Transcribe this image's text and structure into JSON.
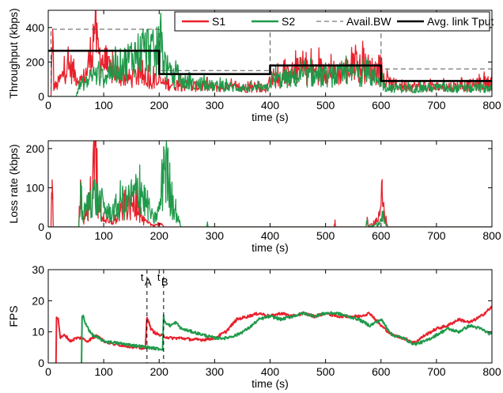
{
  "chart_data": [
    {
      "type": "line",
      "xlabel": "time (s)",
      "ylabel": "Throughput (kbps)",
      "xlim": [
        0,
        800
      ],
      "ylim": [
        0,
        500
      ],
      "xticks": [
        0,
        100,
        200,
        300,
        400,
        500,
        600,
        700,
        800
      ],
      "yticks": [
        0,
        200,
        400
      ],
      "grid": false,
      "legend": {
        "placement": "top-right",
        "entries": [
          "S1",
          "S2",
          "Avail.BW",
          "Avg. link Tput"
        ]
      },
      "series": [
        {
          "name": "S1",
          "color": "#e8212c",
          "style": "noisy",
          "x": [
            0,
            5,
            8,
            10,
            15,
            20,
            25,
            30,
            40,
            50,
            60,
            70,
            80,
            85,
            88,
            90,
            100,
            110,
            120,
            130,
            140,
            150,
            160,
            170,
            180,
            190,
            200,
            210,
            230,
            260,
            300,
            350,
            395,
            400,
            420,
            450,
            480,
            500,
            520,
            550,
            580,
            600,
            605,
            620,
            650,
            700,
            750,
            800
          ],
          "y": [
            0,
            0,
            390,
            60,
            60,
            90,
            110,
            160,
            170,
            120,
            80,
            150,
            300,
            500,
            280,
            250,
            200,
            150,
            140,
            120,
            110,
            100,
            120,
            110,
            100,
            90,
            80,
            75,
            70,
            60,
            55,
            50,
            45,
            110,
            100,
            150,
            140,
            160,
            130,
            170,
            160,
            120,
            90,
            70,
            60,
            55,
            60,
            80
          ]
        },
        {
          "name": "S2",
          "color": "#1f9a4a",
          "style": "noisy",
          "x": [
            0,
            50,
            55,
            60,
            70,
            80,
            90,
            100,
            110,
            120,
            130,
            140,
            150,
            160,
            170,
            180,
            190,
            195,
            200,
            205,
            210,
            220,
            240,
            260,
            300,
            350,
            395,
            400,
            420,
            450,
            480,
            500,
            520,
            550,
            580,
            600,
            605,
            620,
            650,
            700,
            750,
            800
          ],
          "y": [
            0,
            0,
            60,
            70,
            80,
            130,
            120,
            110,
            140,
            160,
            180,
            200,
            230,
            250,
            260,
            280,
            250,
            220,
            300,
            280,
            200,
            120,
            90,
            70,
            60,
            50,
            45,
            90,
            100,
            110,
            120,
            110,
            120,
            130,
            120,
            100,
            60,
            50,
            45,
            50,
            45,
            50
          ]
        },
        {
          "name": "Avail.BW",
          "color": "#555555",
          "style": "dashed",
          "x": [
            0,
            5,
            5,
            200,
            200,
            400,
            400,
            600,
            600,
            800
          ],
          "y": [
            0,
            0,
            390,
            390,
            150,
            150,
            400,
            400,
            160,
            160
          ]
        },
        {
          "name": "Avg. link Tput",
          "color": "#000000",
          "style": "thick",
          "x": [
            0,
            200,
            200,
            400,
            400,
            600,
            600,
            800
          ],
          "y": [
            265,
            265,
            130,
            130,
            180,
            180,
            90,
            90
          ]
        }
      ]
    },
    {
      "type": "line",
      "xlabel": "time (s)",
      "ylabel": "Loss rate (kbps)",
      "xlim": [
        0,
        800
      ],
      "ylim": [
        0,
        220
      ],
      "xticks": [
        0,
        100,
        200,
        300,
        400,
        500,
        600,
        700,
        800
      ],
      "yticks": [
        0,
        100,
        200
      ],
      "grid": false,
      "series": [
        {
          "name": "S1",
          "color": "#e8212c",
          "style": "spiky",
          "x": [
            0,
            5,
            7,
            9,
            12,
            55,
            58,
            62,
            70,
            80,
            86,
            88,
            90,
            95,
            100,
            110,
            120,
            130,
            140,
            150,
            160,
            165,
            170,
            180,
            190,
            200,
            205,
            210,
            220,
            230,
            240,
            515,
            517,
            519,
            573,
            575,
            577,
            598,
            602,
            606,
            612,
            800
          ],
          "y": [
            0,
            0,
            120,
            0,
            0,
            0,
            120,
            20,
            50,
            120,
            220,
            200,
            60,
            40,
            30,
            10,
            20,
            40,
            70,
            60,
            90,
            50,
            20,
            10,
            5,
            10,
            5,
            0,
            0,
            0,
            0,
            0,
            18,
            0,
            0,
            25,
            0,
            30,
            95,
            40,
            0,
            0
          ]
        },
        {
          "name": "S2",
          "color": "#1f9a4a",
          "style": "spiky",
          "x": [
            0,
            55,
            58,
            62,
            70,
            80,
            90,
            100,
            110,
            120,
            130,
            140,
            150,
            160,
            165,
            170,
            180,
            190,
            200,
            205,
            208,
            212,
            216,
            220,
            225,
            230,
            235,
            240,
            285,
            287,
            289,
            573,
            575,
            577,
            598,
            602,
            606,
            612,
            800
          ],
          "y": [
            0,
            0,
            115,
            30,
            60,
            100,
            80,
            60,
            40,
            50,
            80,
            70,
            90,
            100,
            150,
            90,
            60,
            20,
            50,
            120,
            205,
            180,
            140,
            110,
            80,
            50,
            20,
            0,
            0,
            10,
            0,
            0,
            20,
            0,
            10,
            40,
            15,
            0,
            0
          ]
        }
      ]
    },
    {
      "type": "line",
      "xlabel": "time (s)",
      "ylabel": "FPS",
      "xlim": [
        0,
        800
      ],
      "ylim": [
        0,
        30
      ],
      "xticks": [
        0,
        100,
        200,
        300,
        400,
        500,
        600,
        700,
        800
      ],
      "yticks": [
        0,
        10,
        20,
        30
      ],
      "grid": false,
      "annotations": [
        {
          "label": "t",
          "sub": "A",
          "x": 178
        },
        {
          "label": "t",
          "sub": "B",
          "x": 208
        }
      ],
      "series": [
        {
          "name": "S1",
          "color": "#e8212c",
          "style": "smooth",
          "x": [
            14,
            15,
            18,
            22,
            30,
            40,
            50,
            60,
            70,
            80,
            90,
            100,
            120,
            140,
            160,
            175,
            178,
            180,
            185,
            190,
            200,
            210,
            220,
            240,
            260,
            280,
            300,
            320,
            340,
            360,
            380,
            400,
            420,
            440,
            460,
            480,
            500,
            520,
            540,
            560,
            580,
            600,
            620,
            640,
            660,
            680,
            700,
            720,
            740,
            760,
            780,
            800
          ],
          "y": [
            0,
            15,
            14,
            8,
            9,
            7,
            8,
            8,
            7,
            8,
            9,
            7,
            6,
            5.5,
            5,
            4.5,
            15,
            14,
            11,
            10,
            9,
            8.5,
            8,
            8,
            7.5,
            7.5,
            8,
            10,
            14,
            15,
            16,
            15,
            16,
            15,
            16,
            15,
            16,
            15,
            15,
            15,
            16,
            12,
            9,
            8,
            6.5,
            9,
            11,
            12,
            14,
            13,
            15,
            18
          ]
        },
        {
          "name": "S2",
          "color": "#1f9a4a",
          "style": "smooth",
          "x": [
            60,
            61,
            63,
            66,
            70,
            75,
            80,
            90,
            100,
            120,
            140,
            160,
            180,
            200,
            206,
            208,
            210,
            220,
            230,
            240,
            260,
            280,
            300,
            320,
            340,
            360,
            380,
            400,
            420,
            440,
            460,
            480,
            500,
            520,
            540,
            560,
            580,
            600,
            620,
            640,
            660,
            680,
            700,
            720,
            740,
            760,
            780,
            800
          ],
          "y": [
            0,
            15,
            15,
            13,
            12,
            10,
            9,
            8,
            7,
            6.5,
            6,
            5.5,
            5,
            4.5,
            4.5,
            15,
            13,
            12,
            13,
            11,
            10,
            9,
            8,
            8,
            9,
            11,
            14,
            15,
            14,
            15,
            16,
            15,
            16,
            16,
            15,
            14,
            12,
            14,
            9,
            8,
            6,
            7,
            9,
            11,
            10,
            12,
            11,
            9
          ]
        }
      ]
    }
  ]
}
